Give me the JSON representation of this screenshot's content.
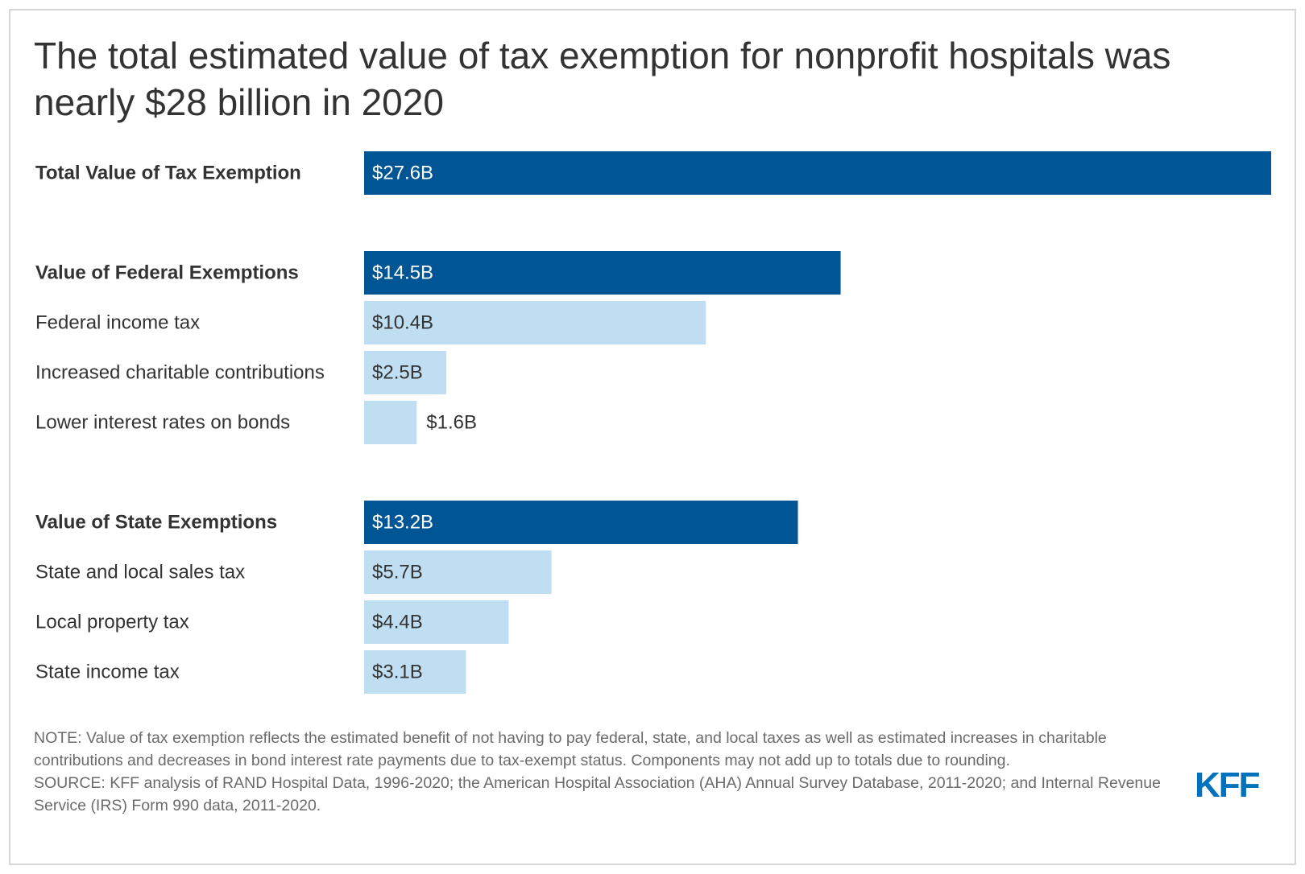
{
  "title": "The total estimated value of tax exemption for nonprofit hospitals was nearly $28 billion in 2020",
  "chart_data": {
    "type": "bar",
    "orientation": "horizontal",
    "title": "The total estimated value of tax exemption for nonprofit hospitals was nearly $28 billion in 2020",
    "xlim": [
      0,
      27.6
    ],
    "unit": "billions of dollars",
    "categories": [
      "Total Value of Tax Exemption",
      "Value of Federal Exemptions",
      "Federal income tax",
      "Increased charitable contributions",
      "Lower interest rates on bonds",
      "Value of State Exemptions",
      "State and local sales tax",
      "Local property tax",
      "State income tax"
    ],
    "values": [
      27.6,
      14.5,
      10.4,
      2.5,
      1.6,
      13.2,
      5.7,
      4.4,
      3.1
    ],
    "labels": [
      "$27.6B",
      "$14.5B",
      "$10.4B",
      "$2.5B",
      "$1.6B",
      "$13.2B",
      "$5.7B",
      "$4.4B",
      "$3.1B"
    ],
    "is_total": [
      true,
      true,
      false,
      false,
      false,
      true,
      false,
      false,
      false
    ],
    "groups": [
      "total",
      "federal",
      "federal",
      "federal",
      "federal",
      "state",
      "state",
      "state",
      "state"
    ]
  },
  "colors": {
    "total_bar": "#005595",
    "component_bar": "#bfdef2",
    "label_dark": "#333333",
    "label_on_dark": "#ffffff",
    "logo": "#0071bc"
  },
  "note": "NOTE: Value of tax exemption reflects the estimated benefit of not having to pay federal, state, and local taxes as well as estimated increases in charitable contributions and decreases in bond interest rate payments due to tax-exempt status. Components may not add up to totals due to rounding.",
  "source": "SOURCE: KFF analysis of RAND Hospital Data, 1996-2020; the American Hospital Association (AHA) Annual Survey Database, 2011-2020; and Internal Revenue Service (IRS) Form 990 data, 2011-2020.",
  "logo_text": "KFF",
  "logo_icon": "kff-logo-icon"
}
